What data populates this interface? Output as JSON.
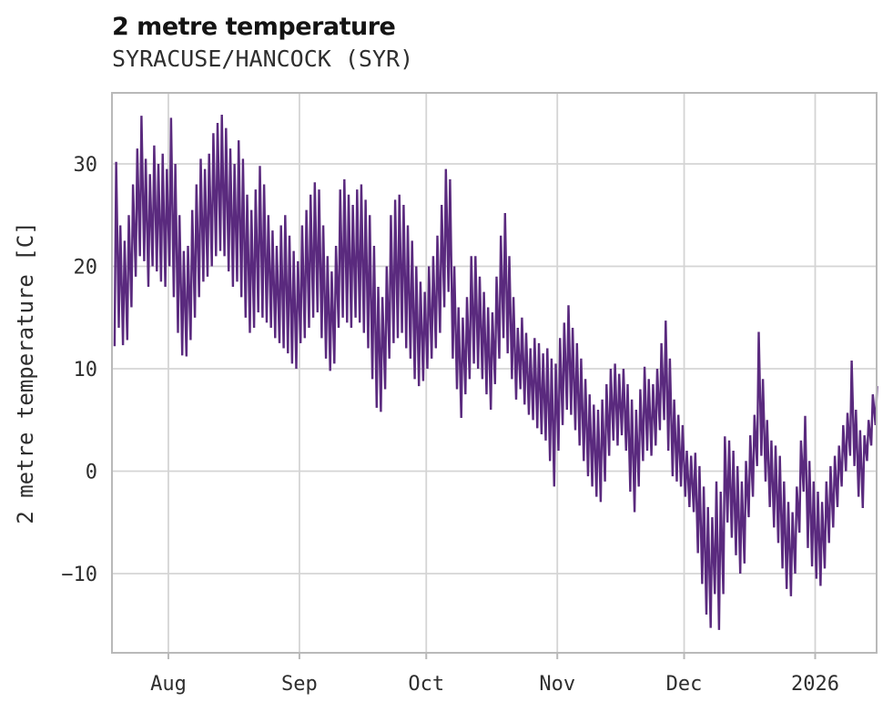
{
  "header": {
    "title": "2 metre temperature",
    "subtitle": "SYRACUSE/HANCOCK (SYR)"
  },
  "chart_data": {
    "type": "line",
    "title": "2 metre temperature",
    "subtitle": "SYRACUSE/HANCOCK (SYR)",
    "xlabel": "",
    "ylabel": "2 metre temperature [C]",
    "legend": "none",
    "grid": true,
    "line_color": "#5a2a7e",
    "grid_color": "#d4d4d4",
    "spine_color": "#b9b9b9",
    "text_color": "#2e2e2e",
    "y_ticks": [
      30,
      20,
      10,
      0,
      -10
    ],
    "ylim": [
      -17.7,
      36.9
    ],
    "x_tick_labels": [
      "Aug",
      "Sep",
      "Oct",
      "Nov",
      "Dec",
      "2026"
    ],
    "x_start": "Jul 19",
    "x_end": "Jan 15",
    "days_total": 181,
    "month_tick_day_offsets": [
      13,
      44,
      74,
      105,
      135,
      166
    ],
    "series_note": "hourly 2m temperature read off as daily low/high envelope, deg C",
    "daily_low": [
      12.2,
      14,
      12.3,
      12.8,
      16,
      19,
      21,
      20.5,
      18,
      20,
      19.5,
      18.5,
      18,
      20,
      17,
      13.5,
      11.3,
      11.2,
      12.8,
      15,
      17,
      18.5,
      19,
      20,
      21,
      21.5,
      21,
      19.5,
      18,
      18.5,
      17,
      15,
      13.5,
      14,
      15.5,
      15,
      14.5,
      14,
      13,
      12.5,
      12,
      11.5,
      10.5,
      10,
      12.5,
      13,
      14,
      15,
      15.5,
      13,
      11,
      9.8,
      10.5,
      14,
      15,
      14.5,
      14,
      15,
      14.5,
      13.5,
      12,
      9,
      6.2,
      5.8,
      8,
      11,
      12.5,
      13,
      13.5,
      12,
      11,
      9,
      8.3,
      8.8,
      10,
      11,
      12,
      13.5,
      16,
      17.5,
      11,
      8,
      5.2,
      7.5,
      9,
      10.5,
      10,
      9,
      7.5,
      6,
      8.5,
      11,
      13,
      11.5,
      9,
      7,
      8,
      6.5,
      5.5,
      5,
      4.2,
      3.6,
      3,
      1,
      -1.5,
      2,
      4.5,
      6,
      5.5,
      4,
      2.5,
      1,
      -0.5,
      -1.5,
      -2.5,
      -3,
      -1,
      1.5,
      3,
      2.5,
      3.5,
      2,
      -2,
      -4,
      -1.5,
      1,
      2,
      1.5,
      2.5,
      4,
      5,
      2,
      -0.5,
      -1,
      -1.5,
      -2.5,
      -3.5,
      -4,
      -8,
      -11,
      -14,
      -15.3,
      -12,
      -15.5,
      -12,
      -5,
      -6.5,
      -8.2,
      -10,
      -9,
      -4.5,
      -2.5,
      0.5,
      1.5,
      -1,
      -3.5,
      -5.5,
      -7,
      -9.5,
      -11.5,
      -12.2,
      -10,
      -6,
      -2,
      -7.5,
      -9.3,
      -10.5,
      -11.2,
      -9.5,
      -7,
      -5.5,
      -3.5,
      -1.5,
      0,
      1.5,
      0.5,
      -2.5,
      -3.6,
      1,
      2.5,
      4.5
    ],
    "daily_high": [
      30.2,
      24,
      22.5,
      25,
      28,
      31.5,
      34.7,
      30.5,
      29,
      31.8,
      30,
      31,
      29.5,
      34.5,
      30,
      25,
      21.5,
      22,
      25.5,
      28,
      30.5,
      29.5,
      31,
      33,
      34,
      34.8,
      33.5,
      31.5,
      30,
      32.3,
      30.5,
      27,
      25.5,
      27.5,
      29.8,
      28,
      25,
      23.5,
      22,
      24,
      25,
      23,
      21.5,
      20.5,
      24,
      25.5,
      27,
      28.2,
      27.5,
      24,
      21,
      19.5,
      22,
      27.5,
      28.5,
      27,
      26,
      27.5,
      28,
      26.5,
      25,
      22,
      18,
      17,
      20,
      25,
      26.5,
      27,
      26,
      24,
      22.5,
      20,
      18.5,
      17.5,
      20,
      21,
      23,
      26,
      29.5,
      28.5,
      20,
      16,
      15,
      17,
      21,
      21,
      19,
      17.5,
      16,
      15.5,
      19,
      23,
      25.2,
      21,
      17,
      14,
      15,
      13.5,
      12,
      13,
      12.5,
      11.5,
      12,
      11,
      10.5,
      13,
      14.5,
      16.2,
      14,
      12.5,
      11,
      9,
      7.5,
      6.5,
      6,
      7,
      8.5,
      10,
      10.5,
      9.5,
      10,
      8.5,
      7,
      6,
      8,
      10.2,
      9,
      8.5,
      10,
      12.5,
      14.7,
      11,
      7,
      5.5,
      4.5,
      2,
      1.5,
      1.8,
      0.5,
      -1.5,
      -3.5,
      -4.5,
      -1,
      -2,
      3.4,
      3,
      2,
      0.5,
      -1,
      1,
      3.5,
      5.5,
      13.6,
      9,
      5,
      3,
      2.5,
      1.5,
      -1,
      -3,
      -4,
      -1.5,
      3,
      5.4,
      1,
      -1,
      -2,
      -3,
      -1,
      0.5,
      1.5,
      2.5,
      4.5,
      5.7,
      10.8,
      6,
      4,
      3.5,
      5,
      7.5,
      8.3
    ]
  }
}
